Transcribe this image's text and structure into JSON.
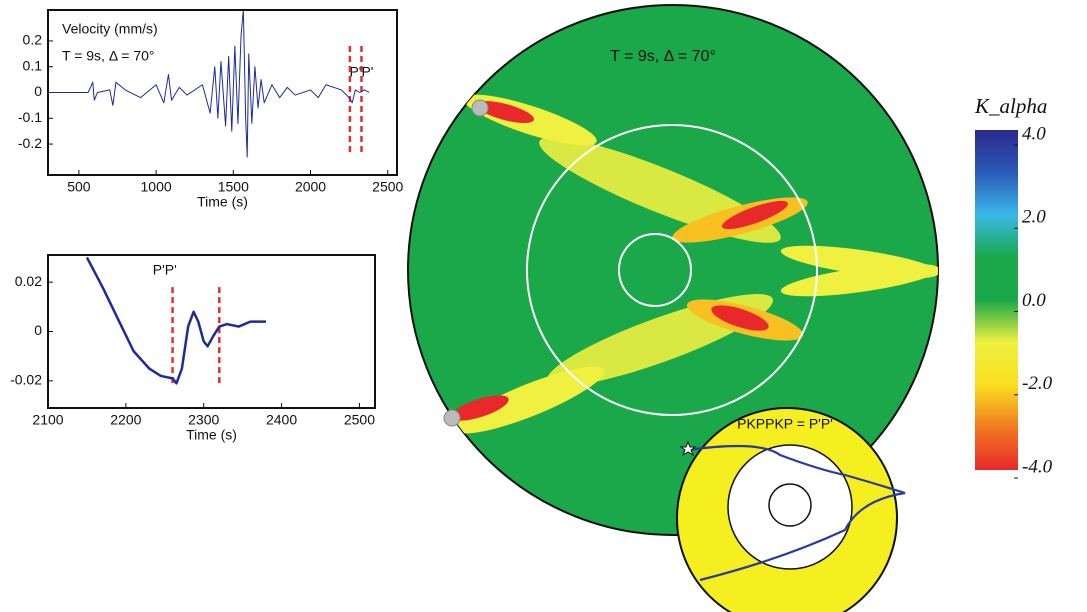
{
  "chart_data": [
    {
      "type": "line",
      "color": "#1f2a9a",
      "line_width": 1,
      "annotations": [
        "Velocity (mm/s)",
        "T = 9s, Δ = 70°"
      ],
      "phase_label": "P'P'",
      "x_label": "Time (s)",
      "x": [
        300,
        560,
        590,
        600,
        620,
        700,
        720,
        740,
        800,
        900,
        1000,
        1050,
        1080,
        1100,
        1150,
        1200,
        1300,
        1350,
        1380,
        1400,
        1420,
        1450,
        1470,
        1490,
        1510,
        1530,
        1550,
        1565,
        1580,
        1590,
        1600,
        1620,
        1640,
        1660,
        1680,
        1700,
        1750,
        1800,
        1850,
        1900,
        2000,
        2050,
        2100,
        2200,
        2250,
        2270,
        2290,
        2320,
        2350,
        2380
      ],
      "values": [
        0,
        0,
        0.04,
        -0.03,
        0,
        0.01,
        -0.05,
        0.04,
        0.01,
        -0.02,
        0.03,
        -0.04,
        0.07,
        -0.03,
        0.02,
        -0.01,
        0.03,
        -0.08,
        0.1,
        -0.1,
        0.12,
        -0.13,
        0.14,
        -0.15,
        0.18,
        -0.12,
        0.22,
        0.32,
        -0.1,
        -0.25,
        0.15,
        -0.12,
        0.1,
        -0.06,
        0.05,
        -0.04,
        0.03,
        -0.02,
        0.02,
        -0.01,
        0.01,
        -0.02,
        0.03,
        0.01,
        -0.02,
        -0.04,
        0.01,
        0,
        0.01,
        0
      ],
      "markers_x": [
        2255,
        2330
      ],
      "marker_color": "#e03030",
      "xlim": [
        300,
        2560
      ],
      "ylim": [
        -0.32,
        0.32
      ],
      "xticks": [
        500,
        1000,
        1500,
        2000,
        2500
      ],
      "yticks": [
        -0.2,
        -0.1,
        0,
        0.1,
        0.2
      ]
    },
    {
      "type": "line",
      "color": "#1f2a9a",
      "line_width": 2.5,
      "phase_label": "P'P'",
      "x_label": "Time (s)",
      "x": [
        2150,
        2170,
        2190,
        2210,
        2230,
        2245,
        2260,
        2265,
        2272,
        2280,
        2287,
        2293,
        2300,
        2305,
        2312,
        2320,
        2330,
        2345,
        2360,
        2380
      ],
      "values": [
        0.03,
        0.018,
        0.005,
        -0.008,
        -0.015,
        -0.018,
        -0.019,
        -0.021,
        -0.015,
        0.002,
        0.008,
        0.004,
        -0.004,
        -0.006,
        -0.002,
        0.002,
        0.003,
        0.002,
        0.004,
        0.004
      ],
      "markers_x": [
        2260,
        2320
      ],
      "marker_color": "#e03030",
      "xlim": [
        2100,
        2520
      ],
      "ylim": [
        -0.031,
        0.031
      ],
      "xticks": [
        2100,
        2200,
        2300,
        2400,
        2500
      ],
      "yticks": [
        -0.02,
        0,
        0.02
      ]
    },
    {
      "type": "kernel",
      "annotation": "T = 9s, Δ = 70°",
      "inset_title": "PKPPKP = P'P'"
    },
    {
      "type": "colorbar",
      "title": "K_alpha",
      "clim": [
        -4,
        4
      ],
      "colormap": [
        "#e8282a",
        "#f07a20",
        "#f8e020",
        "#f0f040",
        "#1aa84a",
        "#1aa84a",
        "#3ab8e8",
        "#2a5ab8",
        "#2a2a8c"
      ],
      "ticks": [
        {
          "value": 4,
          "label": "4.0"
        },
        {
          "value": 2,
          "label": "2.0"
        },
        {
          "value": 0,
          "label": "0.0"
        },
        {
          "value": -2,
          "label": "-2.0"
        },
        {
          "value": -4,
          "label": "-4.0"
        }
      ]
    }
  ]
}
